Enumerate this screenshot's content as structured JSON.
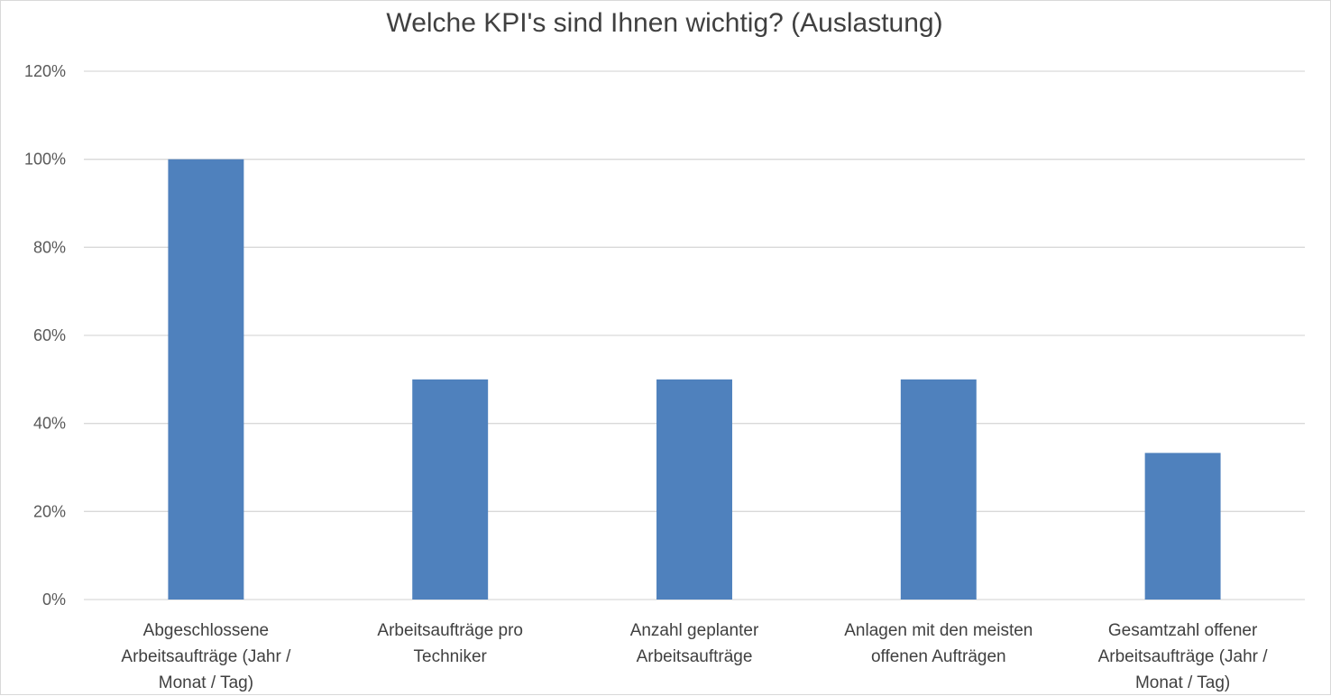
{
  "chart_data": {
    "type": "bar",
    "title": "Welche KPI's sind Ihnen wichtig? (Auslastung)",
    "xlabel": "",
    "ylabel": "",
    "ylim": [
      0,
      1.2
    ],
    "ytick_values": [
      0,
      0.2,
      0.4,
      0.6,
      0.8,
      1.0,
      1.2
    ],
    "ytick_labels": [
      "0%",
      "20%",
      "40%",
      "60%",
      "80%",
      "100%",
      "120%"
    ],
    "grid": true,
    "legend": "none",
    "bar_color": "#4f81bd",
    "categories": [
      [
        "Abgeschlossene",
        "Arbeitsaufträge (Jahr /",
        "Monat  / Tag)"
      ],
      [
        "Arbeitsaufträge pro",
        "Techniker"
      ],
      [
        "Anzahl geplanter",
        "Arbeitsaufträge"
      ],
      [
        "Anlagen mit den meisten",
        "offenen Aufträgen"
      ],
      [
        "Gesamtzahl offener",
        "Arbeitsaufträge (Jahr /",
        "Monat  / Tag)"
      ]
    ],
    "values": [
      1.0,
      0.5,
      0.5,
      0.5,
      0.333
    ]
  }
}
